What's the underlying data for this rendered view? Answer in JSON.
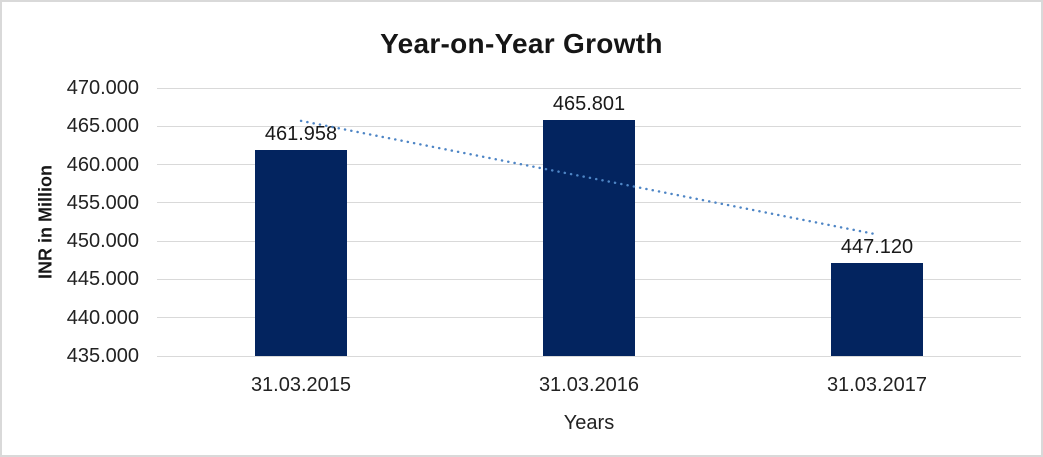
{
  "chart_data": {
    "type": "bar",
    "title": "Year-on-Year Growth",
    "xlabel": "Years",
    "ylabel": "INR in Million",
    "categories": [
      "31.03.2015",
      "31.03.2016",
      "31.03.2017"
    ],
    "values": [
      461.958,
      465.801,
      447.12
    ],
    "value_labels": [
      "461.958",
      "465.801",
      "447.120"
    ],
    "ylim": [
      435,
      470
    ],
    "ytick_step": 5,
    "ytick_labels": [
      "435.000",
      "440.000",
      "445.000",
      "450.000",
      "455.000",
      "460.000",
      "465.000",
      "470.000"
    ],
    "grid": true,
    "legend_position": "none",
    "bar_color": "#03245F",
    "gridline_color": "#d9d9d9",
    "axis_line_color": "#bfbfbf",
    "text_color": "#222222",
    "trendline": {
      "type": "linear",
      "style": "dotted",
      "color": "#4E85C5"
    }
  }
}
